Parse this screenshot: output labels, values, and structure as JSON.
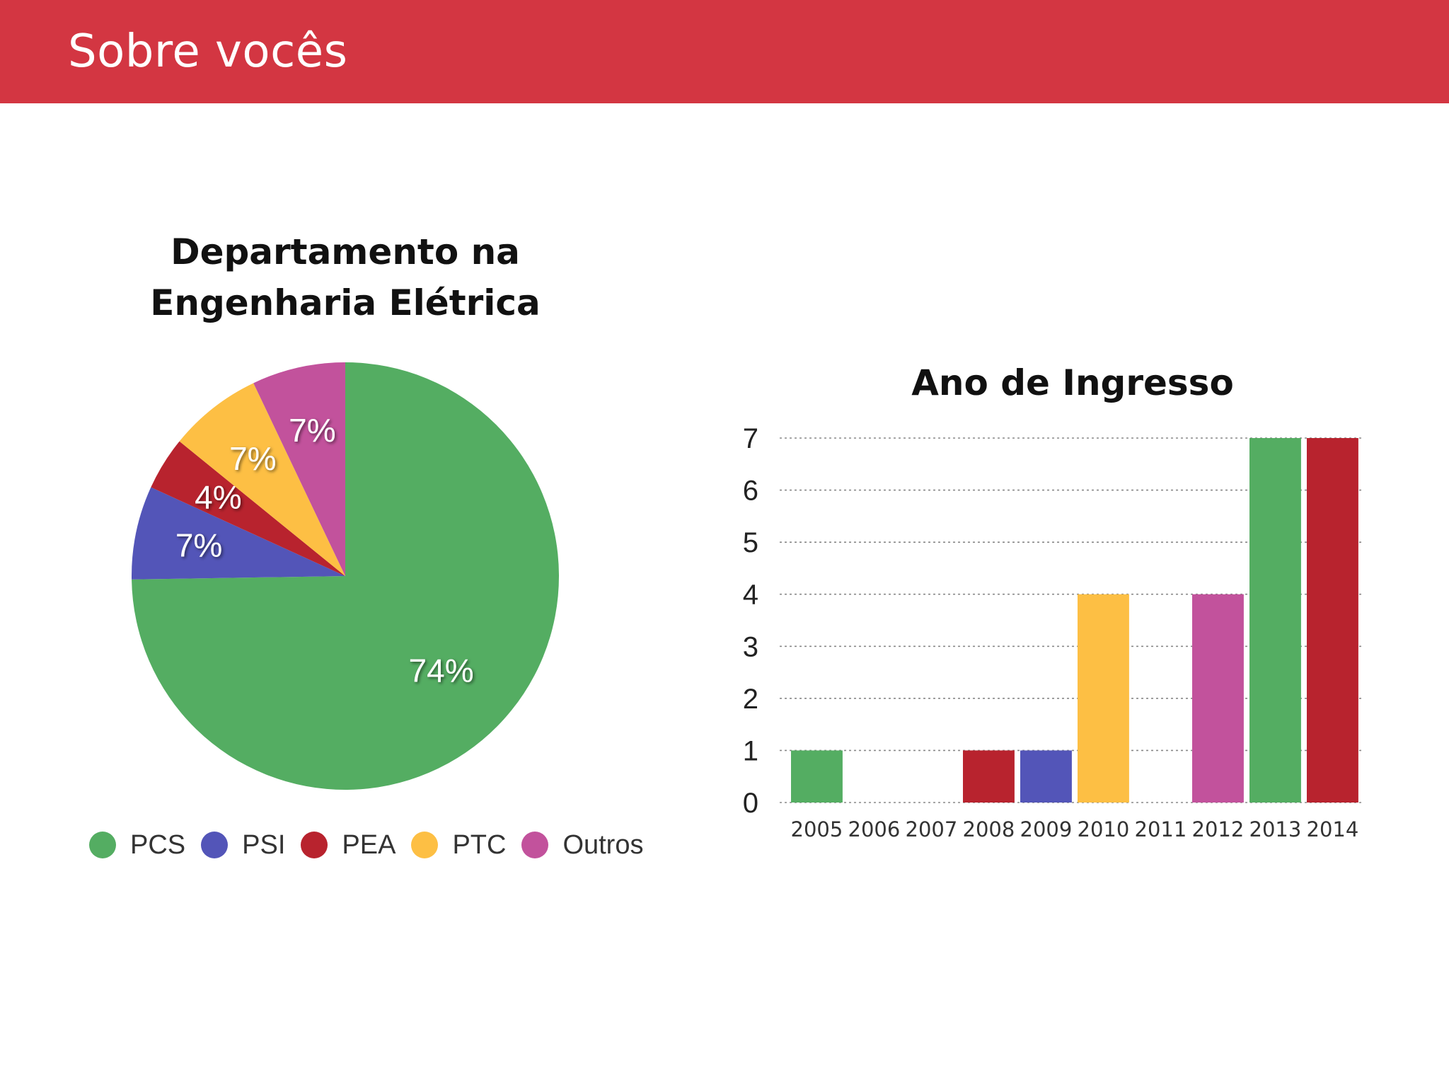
{
  "header": {
    "title": "Sobre vocês",
    "color": "#d33642"
  },
  "chart_data": [
    {
      "type": "pie",
      "title_line1": "Departamento na",
      "title_line2": "Engenharia Elétrica",
      "categories": [
        "PCS",
        "PSI",
        "PEA",
        "PTC",
        "Outros"
      ],
      "values": [
        74,
        7,
        4,
        7,
        7
      ],
      "labels": [
        "74%",
        "7%",
        "4%",
        "7%",
        "7%"
      ],
      "colors": [
        "#54ad62",
        "#5355b8",
        "#b8232e",
        "#fdbf44",
        "#c2529c"
      ],
      "legend_position": "bottom"
    },
    {
      "type": "bar",
      "title": "Ano de Ingresso",
      "categories": [
        "2005",
        "2006",
        "2007",
        "2008",
        "2009",
        "2010",
        "2011",
        "2012",
        "2013",
        "2014"
      ],
      "values": [
        1,
        0,
        0,
        1,
        1,
        4,
        0,
        4,
        7,
        7
      ],
      "colors": [
        "#54ad62",
        "#54ad62",
        "#54ad62",
        "#b8232e",
        "#5355b8",
        "#fdbf44",
        "#fdbf44",
        "#c2529c",
        "#54ad62",
        "#b8232e"
      ],
      "yticks": [
        "0",
        "1",
        "2",
        "3",
        "4",
        "5",
        "6",
        "7"
      ],
      "ylim": [
        0,
        7
      ],
      "grid": true,
      "grid_style": "dotted"
    }
  ]
}
